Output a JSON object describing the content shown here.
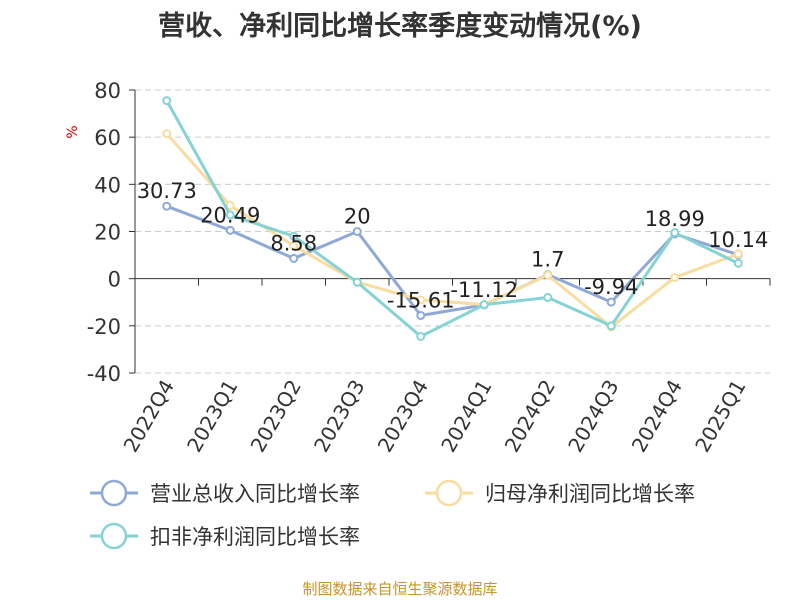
{
  "chart_data": {
    "type": "line",
    "title": "营收、净利同比增长率季度变动情况(%)",
    "ylabel": "%",
    "xlabel": "",
    "ylim": [
      -40,
      80
    ],
    "yticks": [
      80,
      60,
      40,
      20,
      0,
      -20,
      -40
    ],
    "categories": [
      "2022Q4",
      "2023Q1",
      "2023Q2",
      "2023Q3",
      "2023Q4",
      "2024Q1",
      "2024Q2",
      "2024Q3",
      "2024Q4",
      "2025Q1"
    ],
    "series": [
      {
        "name": "营业总收入同比增长率",
        "color": "#8ea9d8",
        "values": [
          30.73,
          20.49,
          8.58,
          20,
          -15.61,
          -11.12,
          1.7,
          -9.94,
          18.99,
          10.14
        ],
        "labels": [
          "30.73",
          "20.49",
          "8.58",
          "20",
          "-15.61",
          "-11.12",
          "1.7",
          "-9.94",
          "18.99",
          "10.14"
        ]
      },
      {
        "name": "归母净利润同比增长率",
        "color": "#f8dca0",
        "values": [
          61.5,
          31,
          14,
          -1.5,
          -9,
          -11,
          1.5,
          -20.5,
          0.5,
          10.5
        ]
      },
      {
        "name": "扣非净利润同比增长率",
        "color": "#86d3d6",
        "values": [
          75.5,
          27,
          18,
          -1.5,
          -24.5,
          -11,
          -8,
          -20,
          19.5,
          6.5
        ]
      }
    ],
    "grid": true,
    "legend_position": "bottom"
  },
  "source": "制图数据来自恒生聚源数据库"
}
